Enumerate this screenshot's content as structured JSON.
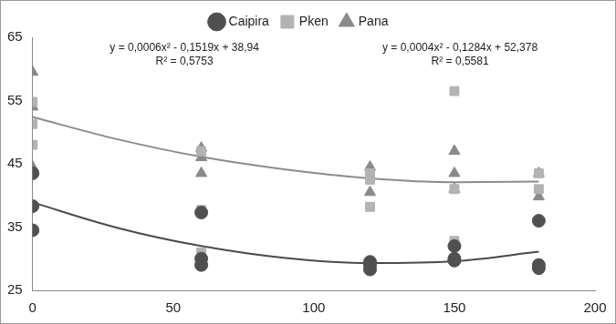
{
  "chart_data": {
    "type": "scatter",
    "series": [
      {
        "name": "Caipira",
        "color": "#505050",
        "marker": "circle",
        "x": [
          0,
          0,
          0,
          60,
          60,
          60,
          120,
          120,
          120,
          150,
          150,
          150,
          180,
          180,
          180
        ],
        "values": [
          43.5,
          38.3,
          34.5,
          37.3,
          30,
          29,
          29.5,
          29,
          28.3,
          32,
          30,
          29.7,
          36,
          29,
          28.5
        ]
      },
      {
        "name": "Pken",
        "color": "#b3b3b3",
        "marker": "square",
        "x": [
          0,
          0,
          0,
          60,
          60,
          60,
          120,
          120,
          120,
          150,
          150,
          150,
          180,
          180,
          180
        ],
        "values": [
          54.8,
          51.3,
          48,
          47,
          37.7,
          31,
          43.5,
          42.5,
          38.2,
          56.5,
          41,
          32.8,
          43.5,
          41,
          29
        ]
      },
      {
        "name": "Pana",
        "color": "#8a8a8a",
        "marker": "triangle",
        "x": [
          0,
          0,
          0,
          60,
          60,
          60,
          120,
          120,
          150,
          150,
          150,
          180,
          180
        ],
        "values": [
          59.5,
          54,
          44.5,
          47.5,
          46,
          43.5,
          44.5,
          40.5,
          47,
          43.5,
          41,
          43.5,
          39.8
        ]
      }
    ],
    "trendlines": [
      {
        "color": "#4a4a4a",
        "x": [
          0,
          30,
          60,
          90,
          120,
          150,
          180
        ],
        "values": [
          38.9,
          34.9,
          32,
          30.1,
          29.3,
          29.6,
          31.1
        ]
      },
      {
        "color": "#8c8c8c",
        "x": [
          0,
          30,
          60,
          90,
          120,
          150,
          180
        ],
        "values": [
          52.4,
          48.9,
          46.1,
          44.1,
          42.7,
          42.1,
          42.2
        ]
      }
    ],
    "annotations": [
      [
        "y = 0,0006x² - 0,1519x + 38,94",
        "R² = 0,5753"
      ],
      [
        "y = 0,0004x² - 0,1284x + 52,378",
        "R² = 0,5581"
      ]
    ],
    "xlim": [
      0,
      200
    ],
    "xticks": [
      0,
      50,
      100,
      150,
      200
    ],
    "ylim": [
      25,
      65
    ],
    "yticks": [
      25,
      35,
      45,
      55,
      65
    ],
    "grid": false,
    "legend": "top"
  }
}
